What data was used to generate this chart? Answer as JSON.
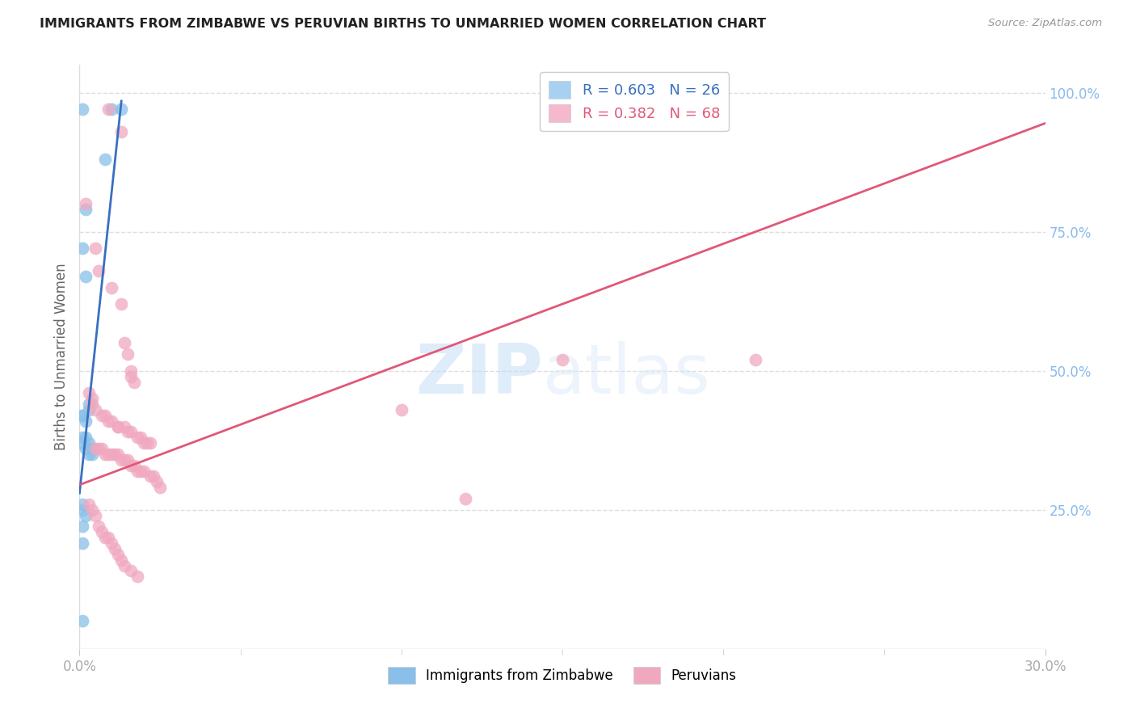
{
  "title": "IMMIGRANTS FROM ZIMBABWE VS PERUVIAN BIRTHS TO UNMARRIED WOMEN CORRELATION CHART",
  "source": "Source: ZipAtlas.com",
  "ylabel": "Births to Unmarried Women",
  "xmin": 0.0,
  "xmax": 0.3,
  "ymin": 0.0,
  "ymax": 1.05,
  "yticks": [
    0.25,
    0.5,
    0.75,
    1.0
  ],
  "ytick_labels": [
    "25.0%",
    "50.0%",
    "75.0%",
    "100.0%"
  ],
  "xtick_labels_bottom": [
    "0.0%",
    "30.0%"
  ],
  "xtick_positions_bottom": [
    0.0,
    0.3
  ],
  "xtick_minor_positions": [
    0.05,
    0.1,
    0.15,
    0.2,
    0.25
  ],
  "legend_entries": [
    {
      "label": "R = 0.603   N = 26",
      "color": "#a8d0f0"
    },
    {
      "label": "R = 0.382   N = 68",
      "color": "#f5b8cc"
    }
  ],
  "legend_bottom": [
    {
      "label": "Immigrants from Zimbabwe",
      "color": "#a8d0f0"
    },
    {
      "label": "Peruvians",
      "color": "#f5b8cc"
    }
  ],
  "blue_scatter_x": [
    0.001,
    0.008,
    0.002,
    0.001,
    0.002,
    0.003,
    0.003,
    0.001,
    0.001,
    0.002,
    0.001,
    0.002,
    0.001,
    0.003,
    0.004,
    0.002,
    0.003,
    0.004,
    0.001,
    0.001,
    0.002,
    0.013,
    0.01,
    0.001,
    0.001,
    0.001
  ],
  "blue_scatter_y": [
    0.97,
    0.88,
    0.79,
    0.72,
    0.67,
    0.44,
    0.43,
    0.42,
    0.42,
    0.41,
    0.38,
    0.38,
    0.37,
    0.37,
    0.36,
    0.36,
    0.35,
    0.35,
    0.26,
    0.25,
    0.24,
    0.97,
    0.97,
    0.22,
    0.19,
    0.05
  ],
  "pink_scatter_x": [
    0.009,
    0.013,
    0.002,
    0.005,
    0.006,
    0.01,
    0.013,
    0.014,
    0.015,
    0.016,
    0.016,
    0.017,
    0.003,
    0.004,
    0.004,
    0.005,
    0.007,
    0.008,
    0.009,
    0.01,
    0.012,
    0.012,
    0.014,
    0.015,
    0.016,
    0.018,
    0.019,
    0.02,
    0.021,
    0.022,
    0.005,
    0.006,
    0.007,
    0.008,
    0.009,
    0.01,
    0.011,
    0.012,
    0.013,
    0.014,
    0.015,
    0.016,
    0.017,
    0.018,
    0.019,
    0.02,
    0.022,
    0.023,
    0.024,
    0.025,
    0.003,
    0.004,
    0.005,
    0.006,
    0.007,
    0.008,
    0.009,
    0.01,
    0.011,
    0.012,
    0.013,
    0.014,
    0.016,
    0.018,
    0.21,
    0.1,
    0.12,
    0.15
  ],
  "pink_scatter_y": [
    0.97,
    0.93,
    0.8,
    0.72,
    0.68,
    0.65,
    0.62,
    0.55,
    0.53,
    0.5,
    0.49,
    0.48,
    0.46,
    0.45,
    0.44,
    0.43,
    0.42,
    0.42,
    0.41,
    0.41,
    0.4,
    0.4,
    0.4,
    0.39,
    0.39,
    0.38,
    0.38,
    0.37,
    0.37,
    0.37,
    0.36,
    0.36,
    0.36,
    0.35,
    0.35,
    0.35,
    0.35,
    0.35,
    0.34,
    0.34,
    0.34,
    0.33,
    0.33,
    0.32,
    0.32,
    0.32,
    0.31,
    0.31,
    0.3,
    0.29,
    0.26,
    0.25,
    0.24,
    0.22,
    0.21,
    0.2,
    0.2,
    0.19,
    0.18,
    0.17,
    0.16,
    0.15,
    0.14,
    0.13,
    0.52,
    0.43,
    0.27,
    0.52
  ],
  "blue_line_x": [
    0.0,
    0.013
  ],
  "blue_line_y": [
    0.28,
    0.985
  ],
  "pink_line_x": [
    0.0,
    0.3
  ],
  "pink_line_y": [
    0.295,
    0.945
  ],
  "watermark_zip": "ZIP",
  "watermark_atlas": "atlas",
  "blue_color": "#89bfe8",
  "pink_color": "#f0a8bf",
  "blue_line_color": "#3870c0",
  "pink_line_color": "#e05878",
  "grid_color": "#dddddd",
  "right_axis_color": "#88bbee",
  "ylabel_color": "#666666",
  "title_color": "#222222",
  "tick_label_color": "#aaaaaa",
  "source_color": "#999999"
}
